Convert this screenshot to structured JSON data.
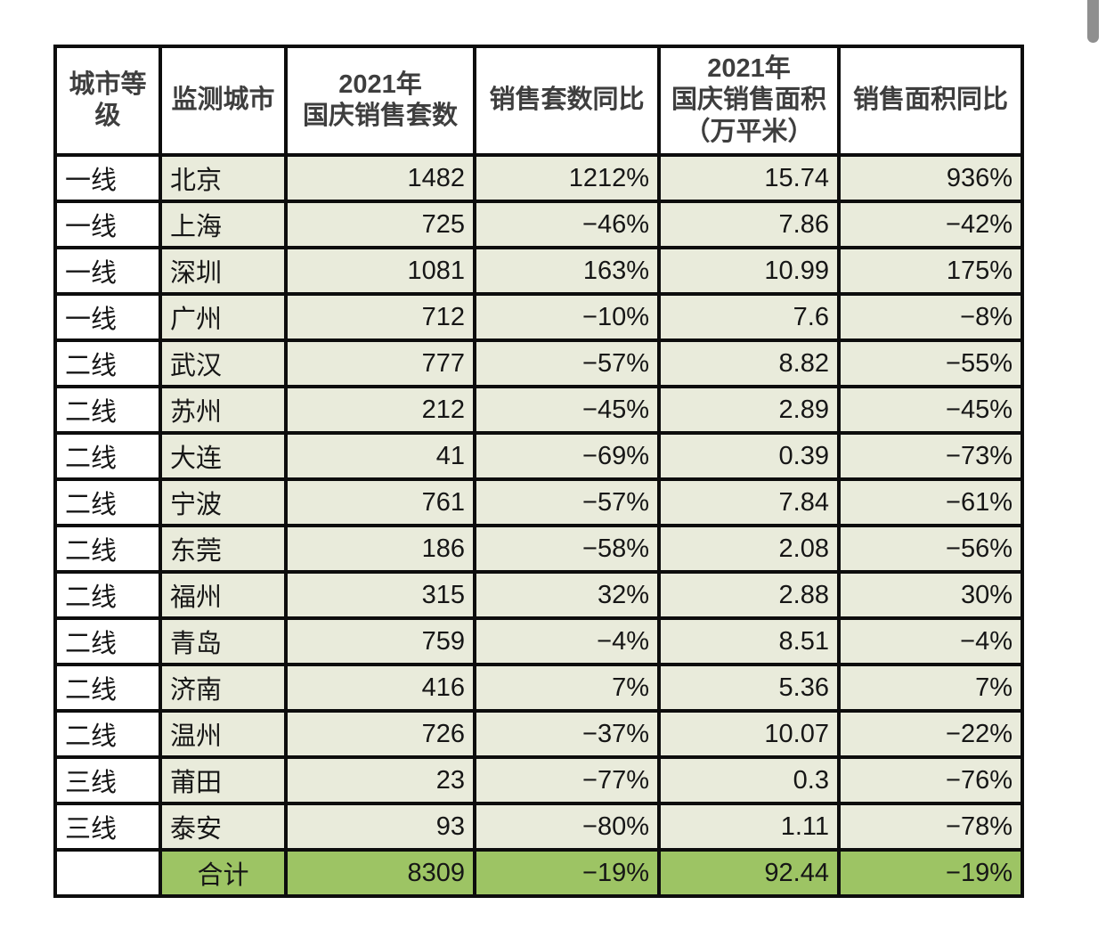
{
  "page": {
    "background": "#ffffff"
  },
  "colors": {
    "cell_bg": "#e9ebdb",
    "tier_cell_bg": "#ffffff",
    "header_bg": "#ffffff",
    "total_row_bg": "#9dc464",
    "grid_border": "#0d0d0d",
    "header_text": "#3e3e3e",
    "cell_text": "#161616",
    "scrollbar_thumb": "#8f8f8f"
  },
  "table": {
    "headers": [
      "城市等级",
      "监测城市",
      "2021年\n国庆销售套数",
      "销售套数同比",
      "2021年\n国庆销售面积\n（万平米）",
      "销售面积同比"
    ],
    "rows": [
      [
        "一线",
        "北京",
        "1482",
        "1212%",
        "15.74",
        "936%"
      ],
      [
        "一线",
        "上海",
        "725",
        "−46%",
        "7.86",
        "−42%"
      ],
      [
        "一线",
        "深圳",
        "1081",
        "163%",
        "10.99",
        "175%"
      ],
      [
        "一线",
        "广州",
        "712",
        "−10%",
        "7.6",
        "−8%"
      ],
      [
        "二线",
        "武汉",
        "777",
        "−57%",
        "8.82",
        "−55%"
      ],
      [
        "二线",
        "苏州",
        "212",
        "−45%",
        "2.89",
        "−45%"
      ],
      [
        "二线",
        "大连",
        "41",
        "−69%",
        "0.39",
        "−73%"
      ],
      [
        "二线",
        "宁波",
        "761",
        "−57%",
        "7.84",
        "−61%"
      ],
      [
        "二线",
        "东莞",
        "186",
        "−58%",
        "2.08",
        "−56%"
      ],
      [
        "二线",
        "福州",
        "315",
        "32%",
        "2.88",
        "30%"
      ],
      [
        "二线",
        "青岛",
        "759",
        "−4%",
        "8.51",
        "−4%"
      ],
      [
        "二线",
        "济南",
        "416",
        "7%",
        "5.36",
        "7%"
      ],
      [
        "二线",
        "温州",
        "726",
        "−37%",
        "10.07",
        "−22%"
      ],
      [
        "三线",
        "莆田",
        "23",
        "−77%",
        "0.3",
        "−76%"
      ],
      [
        "三线",
        "泰安",
        "93",
        "−80%",
        "1.11",
        "−78%"
      ]
    ],
    "total": [
      "",
      "合计",
      "8309",
      "−19%",
      "92.44",
      "−19%"
    ]
  },
  "chart_data": {
    "type": "table",
    "columns": [
      "城市等级",
      "监测城市",
      "2021年国庆销售套数",
      "销售套数同比",
      "2021年国庆销售面积（万平米）",
      "销售面积同比"
    ],
    "rows": [
      {
        "tier": "一线",
        "city": "北京",
        "units": 1482,
        "units_yoy_pct": 1212,
        "area_wan_sqm": 15.74,
        "area_yoy_pct": 936
      },
      {
        "tier": "一线",
        "city": "上海",
        "units": 725,
        "units_yoy_pct": -46,
        "area_wan_sqm": 7.86,
        "area_yoy_pct": -42
      },
      {
        "tier": "一线",
        "city": "深圳",
        "units": 1081,
        "units_yoy_pct": 163,
        "area_wan_sqm": 10.99,
        "area_yoy_pct": 175
      },
      {
        "tier": "一线",
        "city": "广州",
        "units": 712,
        "units_yoy_pct": -10,
        "area_wan_sqm": 7.6,
        "area_yoy_pct": -8
      },
      {
        "tier": "二线",
        "city": "武汉",
        "units": 777,
        "units_yoy_pct": -57,
        "area_wan_sqm": 8.82,
        "area_yoy_pct": -55
      },
      {
        "tier": "二线",
        "city": "苏州",
        "units": 212,
        "units_yoy_pct": -45,
        "area_wan_sqm": 2.89,
        "area_yoy_pct": -45
      },
      {
        "tier": "二线",
        "city": "大连",
        "units": 41,
        "units_yoy_pct": -69,
        "area_wan_sqm": 0.39,
        "area_yoy_pct": -73
      },
      {
        "tier": "二线",
        "city": "宁波",
        "units": 761,
        "units_yoy_pct": -57,
        "area_wan_sqm": 7.84,
        "area_yoy_pct": -61
      },
      {
        "tier": "二线",
        "city": "东莞",
        "units": 186,
        "units_yoy_pct": -58,
        "area_wan_sqm": 2.08,
        "area_yoy_pct": -56
      },
      {
        "tier": "二线",
        "city": "福州",
        "units": 315,
        "units_yoy_pct": 32,
        "area_wan_sqm": 2.88,
        "area_yoy_pct": 30
      },
      {
        "tier": "二线",
        "city": "青岛",
        "units": 759,
        "units_yoy_pct": -4,
        "area_wan_sqm": 8.51,
        "area_yoy_pct": -4
      },
      {
        "tier": "二线",
        "city": "济南",
        "units": 416,
        "units_yoy_pct": 7,
        "area_wan_sqm": 5.36,
        "area_yoy_pct": 7
      },
      {
        "tier": "二线",
        "city": "温州",
        "units": 726,
        "units_yoy_pct": -37,
        "area_wan_sqm": 10.07,
        "area_yoy_pct": -22
      },
      {
        "tier": "三线",
        "city": "莆田",
        "units": 23,
        "units_yoy_pct": -77,
        "area_wan_sqm": 0.3,
        "area_yoy_pct": -76
      },
      {
        "tier": "三线",
        "city": "泰安",
        "units": 93,
        "units_yoy_pct": -80,
        "area_wan_sqm": 1.11,
        "area_yoy_pct": -78
      }
    ],
    "total": {
      "label": "合计",
      "units": 8309,
      "units_yoy_pct": -19,
      "area_wan_sqm": 92.44,
      "area_yoy_pct": -19
    }
  }
}
